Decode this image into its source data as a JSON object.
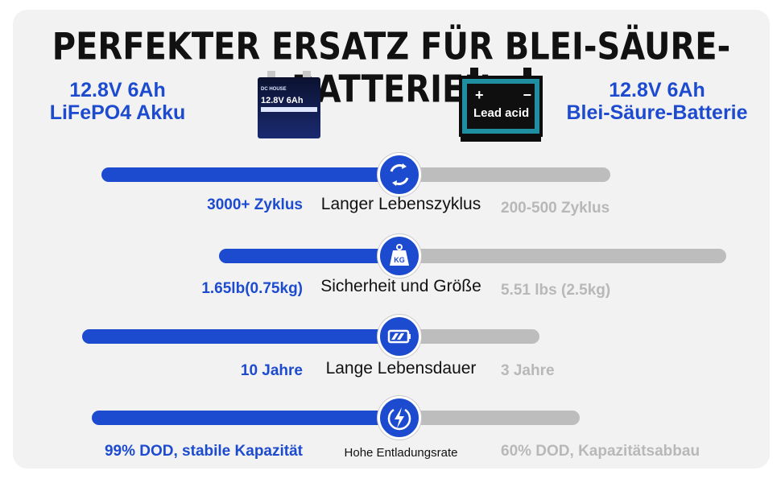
{
  "title": "PERFEKTER ERSATZ FÜR BLEI-SÄURE-BATTERIEN",
  "left_product": {
    "line1": "12.8V 6Ah",
    "line2": "LiFePO4 Akku"
  },
  "right_product": {
    "line1": "12.8V 6Ah",
    "line2": "Blei-Säure-Batterie"
  },
  "lfp_battery": {
    "brand": "DC HOUSE",
    "voltage": "12.8V 6Ah"
  },
  "lead_battery": {
    "plus": "+",
    "minus": "−",
    "label": "Lead acid"
  },
  "colors": {
    "accent": "#1d4bcf",
    "muted": "#b8b8b8",
    "bar_gray": "#bdbdbd"
  },
  "rows": [
    {
      "icon": "cycle-icon",
      "left_value": "3000+ Zyklus",
      "label": "Langer Lebenszyklus",
      "right_value": "200-500 Zyklus"
    },
    {
      "icon": "weight-kg-icon",
      "icon_text": "KG",
      "left_value": "1.65lb(0.75kg)",
      "label": "Sicherheit und Größe",
      "right_value": "5.51 lbs (2.5kg)"
    },
    {
      "icon": "battery-icon",
      "left_value": "10 Jahre",
      "label": "Lange Lebensdauer",
      "right_value": "3 Jahre"
    },
    {
      "icon": "lightning-icon",
      "left_value": "99% DOD, stabile Kapazität",
      "label": "Hohe Entladungsrate",
      "right_value": "60% DOD, Kapazitätsabbau"
    }
  ]
}
